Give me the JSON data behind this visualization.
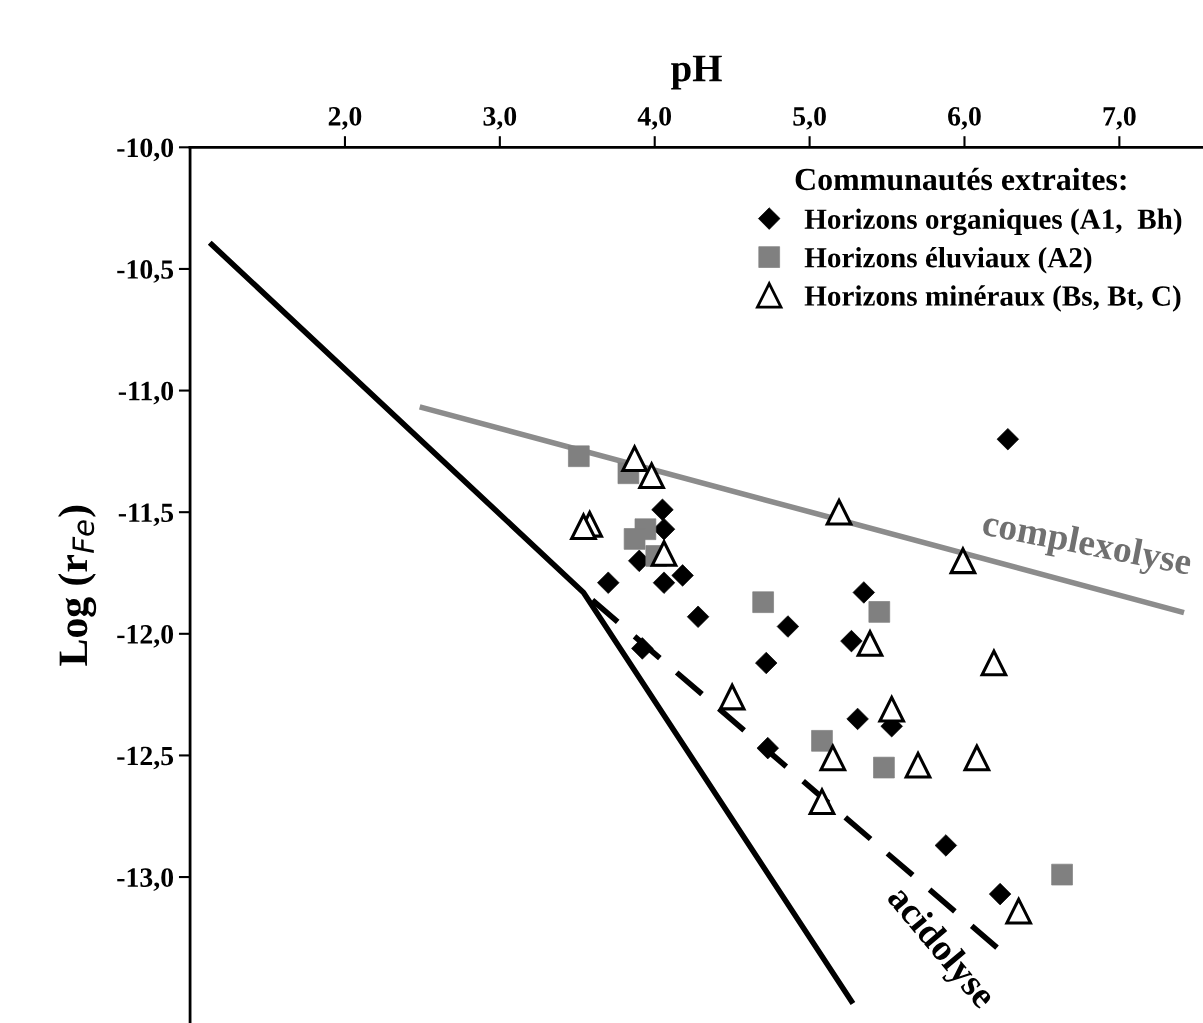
{
  "chart_data": {
    "type": "scatter",
    "xlabel": "pH",
    "ylabel": "Log (r$_{Fe}$)",
    "legend_title": "Communautés extraites:",
    "xlim": [
      1.0,
      7.54
    ],
    "ylim": [
      -13.6,
      -10.0
    ],
    "xticks": [
      {
        "value": 2,
        "label": "2,0"
      },
      {
        "value": 3,
        "label": "3,0"
      },
      {
        "value": 4,
        "label": "4,0"
      },
      {
        "value": 5,
        "label": "5,0"
      },
      {
        "value": 6,
        "label": "6,0"
      },
      {
        "value": 7,
        "label": "7,0"
      }
    ],
    "yticks": [
      {
        "value": -10,
        "label": "-10,0"
      },
      {
        "value": -10.5,
        "label": "-10,5"
      },
      {
        "value": -11,
        "label": "-11,0"
      },
      {
        "value": -11.5,
        "label": "-11,5"
      },
      {
        "value": -12,
        "label": "-12,0"
      },
      {
        "value": -12.5,
        "label": "-12,5"
      },
      {
        "value": -13,
        "label": "-13,0"
      }
    ],
    "grid": false,
    "legend": "top right",
    "series": [
      {
        "name": "Horizons organiques (A1,  Bh)",
        "marker": "diamond",
        "color": "#000000",
        "x": [
          4.05,
          4.06,
          3.9,
          3.7,
          4.06,
          4.18,
          4.28,
          3.92,
          4.72,
          6.28,
          5.35,
          4.86,
          5.27,
          5.31,
          5.53,
          4.73,
          5.88,
          6.23
        ],
        "values": [
          -11.49,
          -11.57,
          -11.7,
          -11.79,
          -11.79,
          -11.76,
          -11.93,
          -12.06,
          -12.12,
          -11.2,
          -11.83,
          -11.97,
          -12.03,
          -12.35,
          -12.38,
          -12.47,
          -12.87,
          -13.07
        ]
      },
      {
        "name": "Horizons éluviaux (A2)",
        "marker": "square",
        "color": "#808080",
        "x": [
          3.51,
          3.83,
          3.94,
          3.87,
          4.01,
          4.7,
          5.45,
          5.08,
          5.48,
          6.63
        ],
        "values": [
          -11.27,
          -11.34,
          -11.57,
          -11.61,
          -11.68,
          -11.87,
          -11.91,
          -12.44,
          -12.55,
          -12.99
        ]
      },
      {
        "name": "Horizons minéraux (Bs, Bt, C)",
        "marker": "triangle",
        "color": "#000000",
        "x": [
          3.87,
          3.98,
          3.58,
          3.54,
          4.06,
          4.5,
          5.19,
          5.99,
          5.39,
          6.19,
          5.53,
          5.15,
          5.7,
          6.08,
          5.08,
          6.35
        ],
        "values": [
          -11.28,
          -11.35,
          -11.55,
          -11.56,
          -11.67,
          -12.26,
          -11.5,
          -11.7,
          -12.04,
          -12.12,
          -12.31,
          -12.51,
          -12.54,
          -12.51,
          -12.69,
          -13.14
        ]
      },
      {
        "type": "line",
        "line_style": "solid",
        "color": "#000000",
        "x": [
          1.14,
          3.54,
          5.27
        ],
        "values": [
          -10.4,
          -11.83,
          -13.51
        ]
      },
      {
        "type": "line",
        "line_style": "dashed",
        "color": "#000000",
        "x": [
          6.21,
          3.54
        ],
        "values": [
          -13.29,
          -11.83
        ]
      },
      {
        "type": "line",
        "line_style": "solid",
        "color": "#8c8c8c",
        "x": [
          2.5,
          7.4
        ],
        "values": [
          -11.07,
          -11.91
        ]
      }
    ],
    "annotations": [
      "complexolyse",
      "acidolyse"
    ]
  }
}
